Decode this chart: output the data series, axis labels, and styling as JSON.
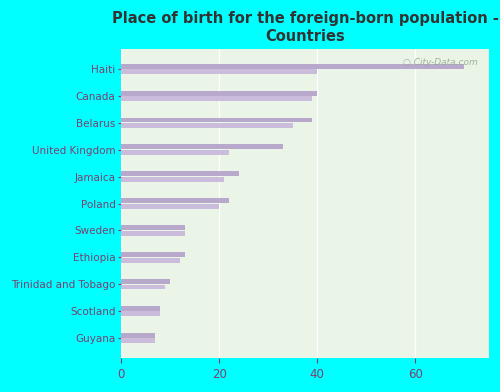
{
  "title": "Place of birth for the foreign-born population -\nCountries",
  "categories": [
    "Haiti",
    "Canada",
    "Belarus",
    "United Kingdom",
    "Jamaica",
    "Poland",
    "Sweden",
    "Ethiopia",
    "Trinidad and Tobago",
    "Scotland",
    "Guyana"
  ],
  "bar1": [
    70,
    40,
    39,
    33,
    24,
    22,
    13,
    13,
    10,
    8,
    7
  ],
  "bar2": [
    40,
    39,
    35,
    22,
    21,
    20,
    13,
    12,
    9,
    8,
    7
  ],
  "bar_color": "#b8a8cc",
  "bar_color2": "#cbbcdc",
  "plot_bg_color": "#eaf5e8",
  "fig_bg_color": "#00ffff",
  "title_color": "#333333",
  "label_color": "#7a4070",
  "tick_color": "#7a4070",
  "xlim": [
    0,
    75
  ],
  "xticks": [
    0,
    20,
    40,
    60
  ],
  "watermark": "City-Data.com"
}
